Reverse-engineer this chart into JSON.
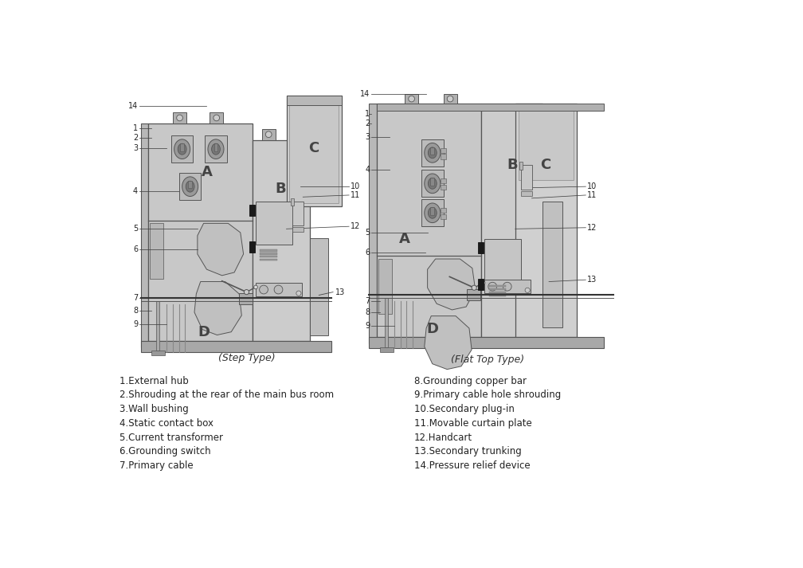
{
  "background_color": "#ffffff",
  "figure_width": 10.08,
  "figure_height": 7.13,
  "left_caption": "(Step Type)",
  "right_caption": "(Flat Top Type)",
  "legend_left": [
    "1.External hub",
    "2.Shrouding at the rear of the main bus room",
    "3.Wall bushing",
    "4.Static contact box",
    "5.Current transformer",
    "6.Grounding switch",
    "7.Primary cable"
  ],
  "legend_right": [
    "8.Grounding copper bar",
    "9.Primary cable hole shrouding",
    "10.Secondary plug-in",
    "11.Movable curtain plate",
    "12.Handcart",
    "13.Secondary trunking",
    "14.Pressure relief device"
  ],
  "panel_gray": "#c8c8c8",
  "panel_dark": "#b0b0b0",
  "panel_light": "#d8d8d8",
  "edge_color": "#555555",
  "line_color": "#444444",
  "black": "#1a1a1a",
  "legend_fontsize": 8.5,
  "caption_fontsize": 9,
  "label_fontsize": 7
}
